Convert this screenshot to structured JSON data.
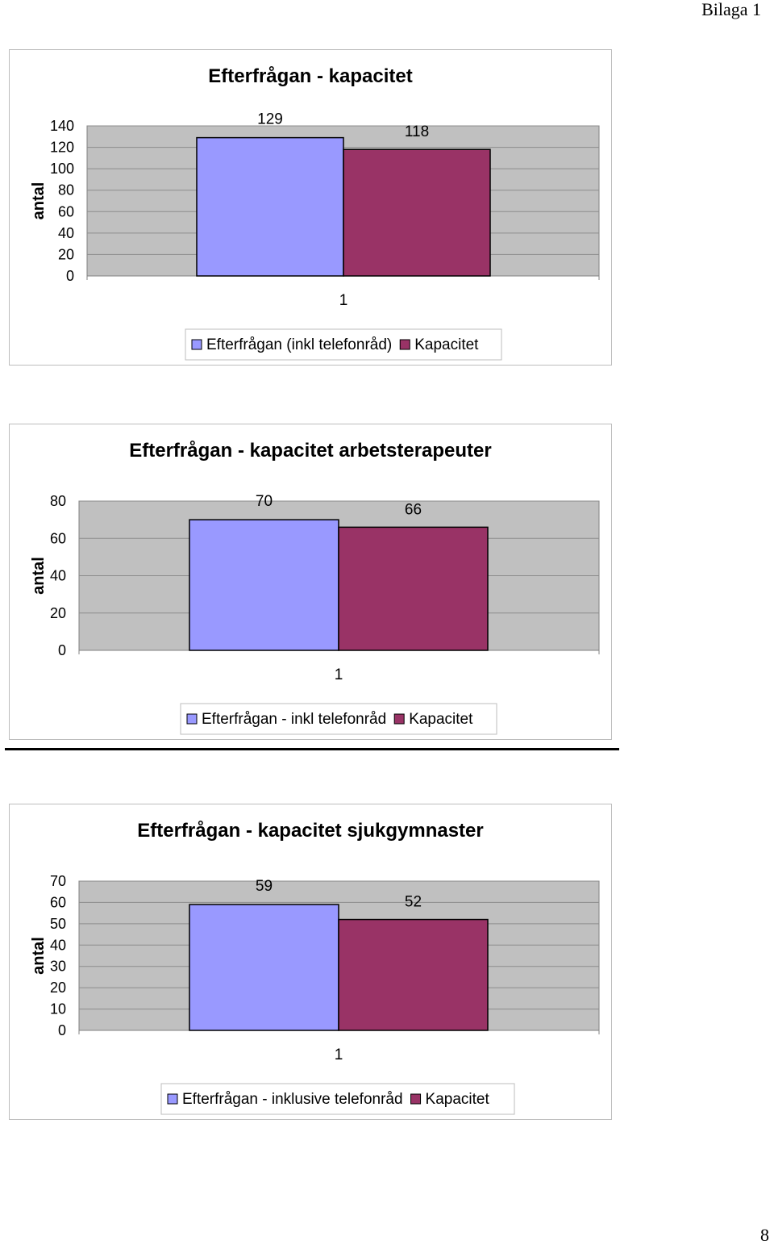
{
  "header": {
    "label": "Bilaga 1"
  },
  "footer": {
    "page_number": "8"
  },
  "colors": {
    "demand": "#9999FF",
    "capacity": "#993366",
    "plot_bg": "#C0C0C0"
  },
  "chart_data": [
    {
      "type": "bar",
      "title": "Efterfrågan - kapacitet",
      "ylabel": "antal",
      "xlabel": "",
      "categories": [
        "1"
      ],
      "series": [
        {
          "name": "Efterfrågan (inkl telefonråd)",
          "values": [
            129
          ]
        },
        {
          "name": "Kapacitet",
          "values": [
            118
          ]
        }
      ],
      "ylim": [
        0,
        140
      ],
      "yticks": [
        0,
        20,
        40,
        60,
        80,
        100,
        120,
        140
      ],
      "grid": true,
      "legend": "bottom"
    },
    {
      "type": "bar",
      "title": "Efterfrågan - kapacitet arbetsterapeuter",
      "ylabel": "antal",
      "xlabel": "",
      "categories": [
        "1"
      ],
      "series": [
        {
          "name": "Efterfrågan - inkl telefonråd",
          "values": [
            70
          ]
        },
        {
          "name": "Kapacitet",
          "values": [
            66
          ]
        }
      ],
      "ylim": [
        0,
        80
      ],
      "yticks": [
        0,
        20,
        40,
        60,
        80
      ],
      "grid": true,
      "legend": "bottom"
    },
    {
      "type": "bar",
      "title": "Efterfrågan - kapacitet sjukgymnaster",
      "ylabel": "antal",
      "xlabel": "",
      "categories": [
        "1"
      ],
      "series": [
        {
          "name": "Efterfrågan - inklusive telefonråd",
          "values": [
            59
          ]
        },
        {
          "name": "Kapacitet",
          "values": [
            52
          ]
        }
      ],
      "ylim": [
        0,
        70
      ],
      "yticks": [
        0,
        10,
        20,
        30,
        40,
        50,
        60,
        70
      ],
      "grid": true,
      "legend": "bottom"
    }
  ]
}
